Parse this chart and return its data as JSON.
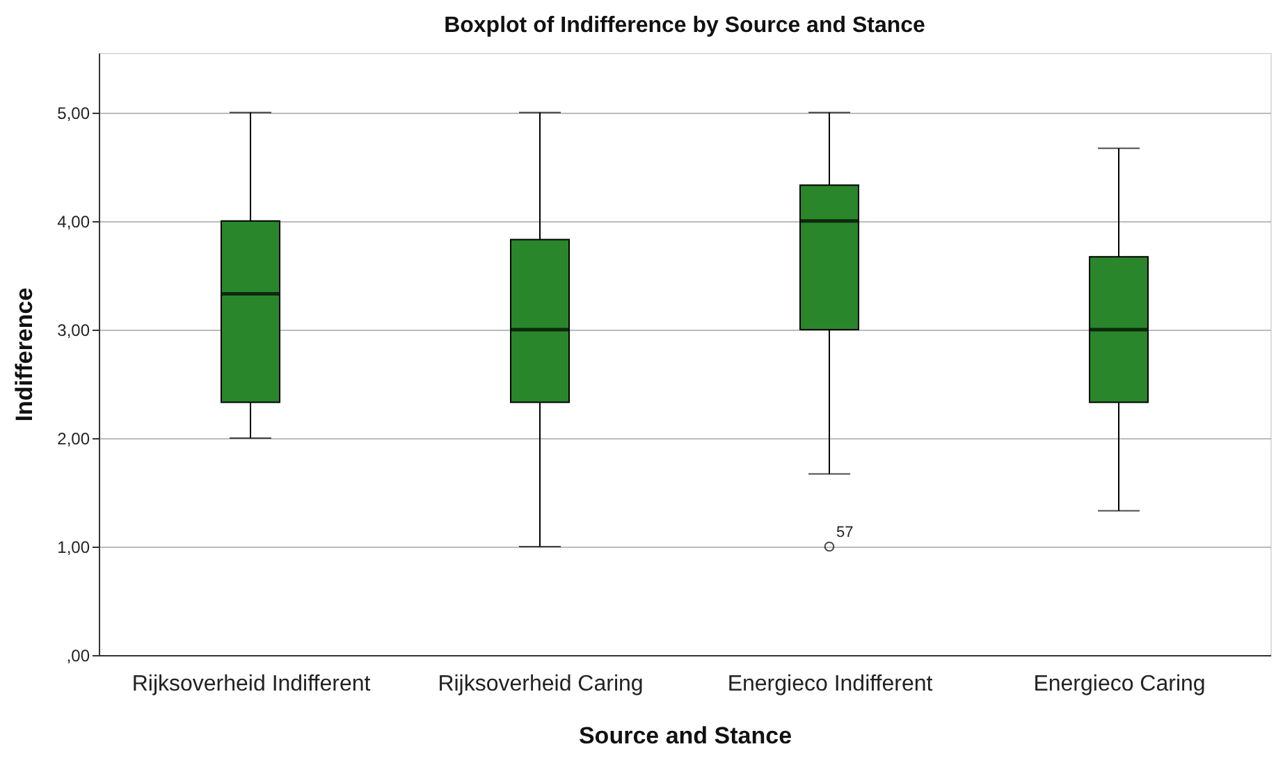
{
  "chart_data": {
    "type": "box",
    "title": "Boxplot of Indifference by Source and Stance",
    "xlabel": "Source and Stance",
    "ylabel": "Indifference",
    "categories": [
      "Rijksoverheid Indifferent",
      "Rijksoverheid Caring",
      "Energieco Indifferent",
      "Energieco Caring"
    ],
    "series": [
      {
        "color": "#2a862a",
        "boxes": [
          {
            "low": 2.0,
            "q1": 2.33,
            "median": 3.33,
            "q3": 4.0,
            "high": 5.0
          },
          {
            "low": 1.0,
            "q1": 2.33,
            "median": 3.0,
            "q3": 3.83,
            "high": 5.0
          },
          {
            "low": 1.67,
            "q1": 3.0,
            "median": 4.0,
            "q3": 4.33,
            "high": 5.0,
            "outliers": [
              1.0
            ]
          },
          {
            "low": 1.33,
            "q1": 2.33,
            "median": 3.0,
            "q3": 3.67,
            "high": 4.67
          }
        ]
      }
    ],
    "annotations": [
      "57"
    ],
    "ylim": [
      0,
      5.55
    ],
    "yticks": [
      {
        "value": 0,
        "label": ",00"
      },
      {
        "value": 1,
        "label": "1,00"
      },
      {
        "value": 2,
        "label": "2,00"
      },
      {
        "value": 3,
        "label": "3,00"
      },
      {
        "value": 4,
        "label": "4,00"
      },
      {
        "value": 5,
        "label": "5,00"
      }
    ],
    "grid": "y"
  }
}
